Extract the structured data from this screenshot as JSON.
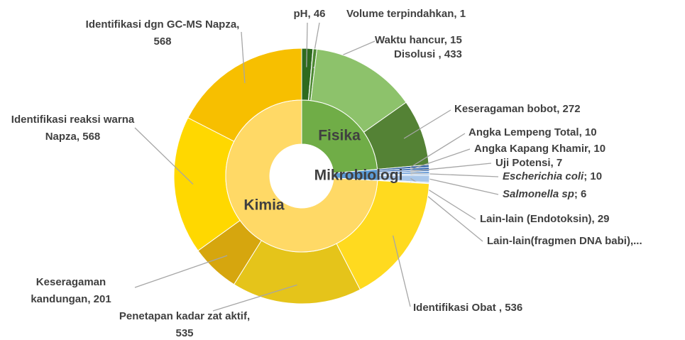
{
  "chart_data": {
    "type": "sunburst",
    "groups": [
      {
        "name": "Fisika",
        "color": "#70ad47",
        "children": [
          {
            "label": "pH, 46",
            "value": 46,
            "color": "#2f6a1f"
          },
          {
            "label": "Volume terpindahkan, 1",
            "value": 1,
            "color": "#3f7f2a"
          },
          {
            "label": "Waktu hancur, 15",
            "value": 15,
            "color": "#4e8a33"
          },
          {
            "label": "Disolusi , 433",
            "value": 433,
            "color": "#8dc26b"
          },
          {
            "label": "Keseragaman bobot, 272",
            "value": 272,
            "color": "#548235"
          }
        ]
      },
      {
        "name": "Mikrobiologi",
        "color": "#5b9bd5",
        "children": [
          {
            "label": "Angka Lempeng Total, 10",
            "value": 10,
            "color": "#2e5fa0"
          },
          {
            "label": "Angka Kapang Khamir, 10",
            "value": 10,
            "color": "#3b6fb6"
          },
          {
            "label": "Uji Potensi, 7",
            "value": 7,
            "color": "#4a80c8"
          },
          {
            "label": {
              "italic": "Escherichia coli",
              "text": "; 10"
            },
            "value": 10,
            "color": "#6fa0d8"
          },
          {
            "label": {
              "italic": "Salmonella sp",
              "text": "; 6"
            },
            "value": 6,
            "color": "#8cb4e2"
          },
          {
            "label": "Lain-lain (Endotoksin), 29",
            "value": 29,
            "color": "#a9c7ea"
          },
          {
            "label": "Lain-lain(fragmen DNA babi),...",
            "value": 5,
            "color": "#c3d8f0"
          }
        ]
      },
      {
        "name": "Kimia",
        "color": "#ffd966",
        "children": [
          {
            "label": "Identifikasi Obat , 536",
            "value": 536,
            "color": "#ffda1f"
          },
          {
            "label": "Penetapan kadar zat aktif, 535",
            "value": 535,
            "color": "#e5c41a"
          },
          {
            "label": "Keseragaman kandungan, 201",
            "value": 201,
            "color": "#d6a60e"
          },
          {
            "label": "Identifikasi reaksi warna Napza, 568",
            "value": 568,
            "color": "#ffd800"
          },
          {
            "label": "Identifikasi dgn GC-MS Napza, 568",
            "value": 568,
            "color": "#f7bf00"
          }
        ]
      }
    ]
  }
}
